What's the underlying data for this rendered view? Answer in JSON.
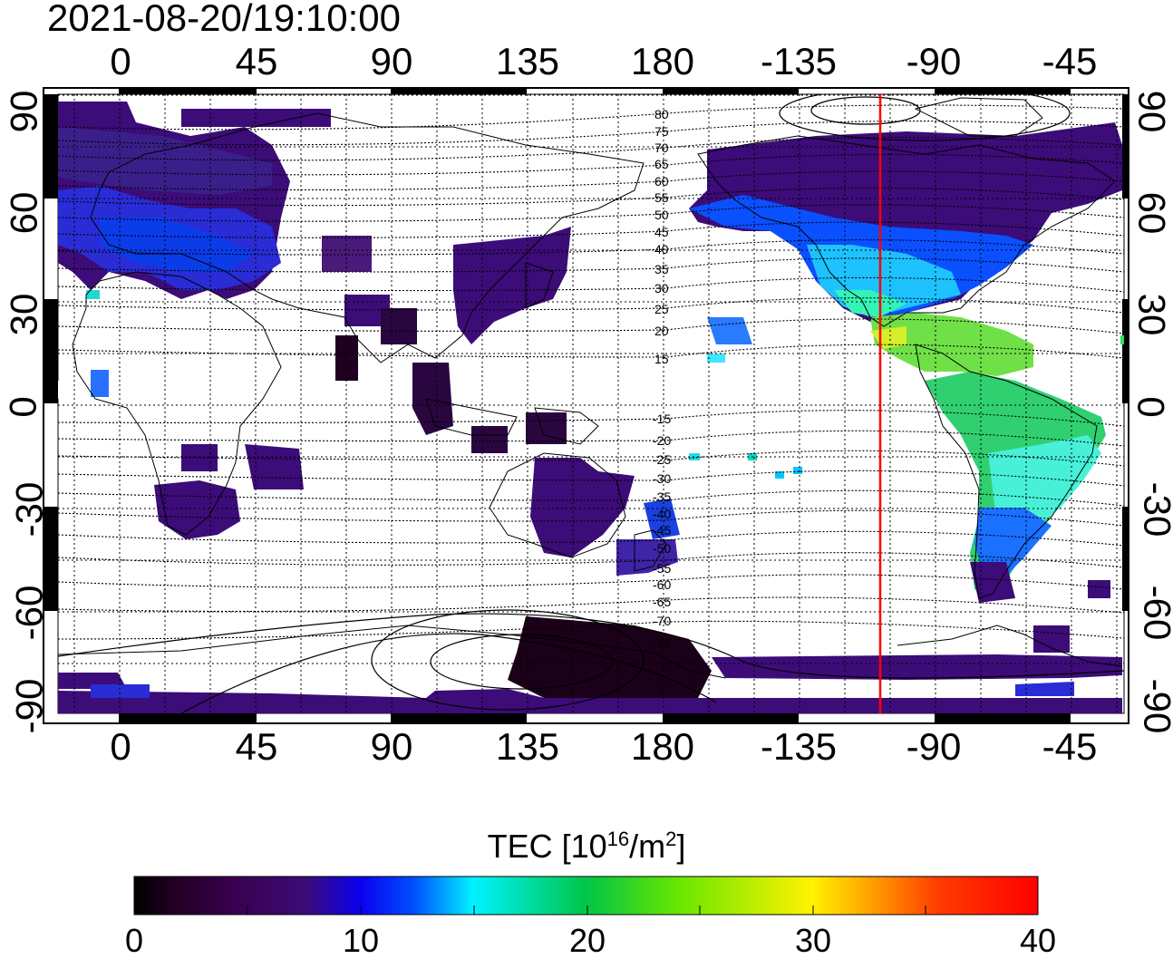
{
  "timestamp": "2021-08-20/19:10:00",
  "x_tick_labels": [
    "0",
    "45",
    "90",
    "135",
    "180",
    "-135",
    "-90",
    "-45"
  ],
  "y_tick_labels": [
    "90",
    "60",
    "30",
    "0",
    "-30",
    "-60",
    "-90"
  ],
  "geomagnetic_latitude_labels": {
    "northern": [
      "80",
      "75",
      "70",
      "65",
      "60",
      "55",
      "50",
      "45",
      "40",
      "35",
      "30",
      "25",
      "20",
      "15"
    ],
    "southern": [
      "-15",
      "-20",
      "-25",
      "-30",
      "-35",
      "-40",
      "-45",
      "-50",
      "-55",
      "-60",
      "-65",
      "-70",
      "-75"
    ]
  },
  "colorbar": {
    "title_main": "TEC  [10",
    "title_exp1": "16",
    "title_mid": "/m",
    "title_exp2": "2",
    "title_end": "]",
    "tick_labels": [
      "0",
      "10",
      "20",
      "30",
      "40"
    ],
    "min": 0,
    "max": 40
  },
  "map": {
    "projection": "equirectangular",
    "longitude_range": [
      -20,
      340
    ],
    "latitude_range": [
      -90,
      90
    ],
    "longitude_grid_step": 15,
    "latitude_grid_step": 15,
    "subsolar_meridian_longitude": -107,
    "colors": {
      "subsolar_meridian": "#ff0000",
      "grid": "#000000",
      "coastline": "#000000"
    }
  }
}
